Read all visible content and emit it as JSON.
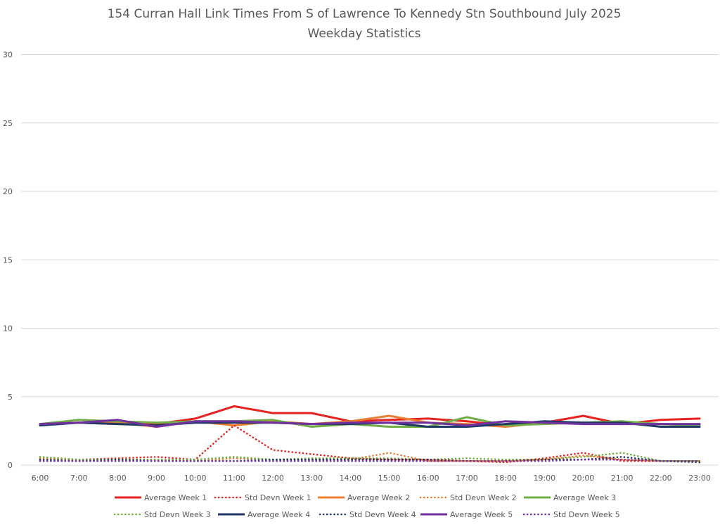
{
  "chart_data": {
    "type": "line",
    "title": "154 Curran Hall Link Times From S of Lawrence To Kennedy Stn Southbound July 2025",
    "subtitle": "Weekday Statistics",
    "xlabel": "",
    "ylabel": "",
    "ylim": [
      0,
      30
    ],
    "yticks": [
      0,
      5,
      10,
      15,
      20,
      25,
      30
    ],
    "grid": true,
    "legend": "bottom",
    "categories": [
      "6:00",
      "7:00",
      "8:00",
      "9:00",
      "10:00",
      "11:00",
      "12:00",
      "13:00",
      "14:00",
      "15:00",
      "16:00",
      "17:00",
      "18:00",
      "19:00",
      "20:00",
      "21:00",
      "22:00",
      "23:00"
    ],
    "series": [
      {
        "name": "Average Week 1",
        "style": "solid",
        "color": "#e8231f",
        "values": [
          3.0,
          3.1,
          3.0,
          3.0,
          3.4,
          4.3,
          3.8,
          3.8,
          3.2,
          3.3,
          3.4,
          3.2,
          2.9,
          3.1,
          3.6,
          3.0,
          3.3,
          3.4
        ]
      },
      {
        "name": "Std Devn Week 1",
        "style": "dotted",
        "color": "#e8231f",
        "values": [
          0.5,
          0.4,
          0.5,
          0.6,
          0.4,
          2.9,
          1.1,
          0.8,
          0.5,
          0.4,
          0.4,
          0.3,
          0.2,
          0.5,
          0.9,
          0.3,
          0.3,
          0.3
        ]
      },
      {
        "name": "Average Week 2",
        "style": "solid",
        "color": "#ed7d31",
        "values": [
          3.0,
          3.1,
          3.1,
          2.8,
          3.2,
          2.9,
          3.2,
          3.0,
          3.2,
          3.6,
          3.1,
          3.0,
          2.8,
          3.1,
          3.1,
          3.1,
          3.0,
          2.9
        ]
      },
      {
        "name": "Std Devn Week 2",
        "style": "dotted",
        "color": "#ed7d31",
        "values": [
          0.5,
          0.3,
          0.4,
          0.4,
          0.3,
          0.5,
          0.4,
          0.4,
          0.4,
          0.9,
          0.3,
          0.3,
          0.3,
          0.4,
          0.7,
          0.4,
          0.3,
          0.3
        ]
      },
      {
        "name": "Average Week 3",
        "style": "solid",
        "color": "#70ad47",
        "values": [
          3.0,
          3.3,
          3.2,
          3.1,
          3.2,
          3.2,
          3.3,
          2.8,
          3.0,
          2.8,
          2.8,
          3.5,
          2.9,
          3.0,
          3.1,
          3.2,
          3.0,
          2.9
        ]
      },
      {
        "name": "Std Devn Week 3",
        "style": "dotted",
        "color": "#70ad47",
        "values": [
          0.6,
          0.4,
          0.4,
          0.4,
          0.4,
          0.6,
          0.4,
          0.5,
          0.5,
          0.5,
          0.4,
          0.5,
          0.4,
          0.4,
          0.6,
          0.9,
          0.3,
          0.3
        ]
      },
      {
        "name": "Average Week 4",
        "style": "solid",
        "color": "#1f3864",
        "values": [
          2.9,
          3.1,
          3.0,
          2.9,
          3.1,
          3.1,
          3.1,
          3.0,
          3.0,
          3.1,
          2.8,
          2.8,
          3.0,
          3.2,
          3.1,
          3.1,
          2.8,
          2.8
        ]
      },
      {
        "name": "Std Devn Week 4",
        "style": "dotted",
        "color": "#1f3864",
        "values": [
          0.4,
          0.3,
          0.4,
          0.3,
          0.3,
          0.3,
          0.4,
          0.4,
          0.4,
          0.4,
          0.4,
          0.3,
          0.3,
          0.4,
          0.4,
          0.6,
          0.3,
          0.2
        ]
      },
      {
        "name": "Average Week 5",
        "style": "solid",
        "color": "#7030a0",
        "values": [
          3.0,
          3.1,
          3.3,
          2.8,
          3.2,
          3.2,
          3.1,
          3.0,
          3.1,
          3.1,
          3.1,
          2.9,
          3.2,
          3.1,
          3.0,
          3.0,
          3.0,
          3.0
        ]
      },
      {
        "name": "Std Devn Week 5",
        "style": "dotted",
        "color": "#7030a0",
        "values": [
          0.3,
          0.3,
          0.3,
          0.3,
          0.3,
          0.3,
          0.3,
          0.3,
          0.3,
          0.3,
          0.3,
          0.3,
          0.3,
          0.3,
          0.4,
          0.4,
          0.3,
          0.3
        ]
      }
    ]
  }
}
